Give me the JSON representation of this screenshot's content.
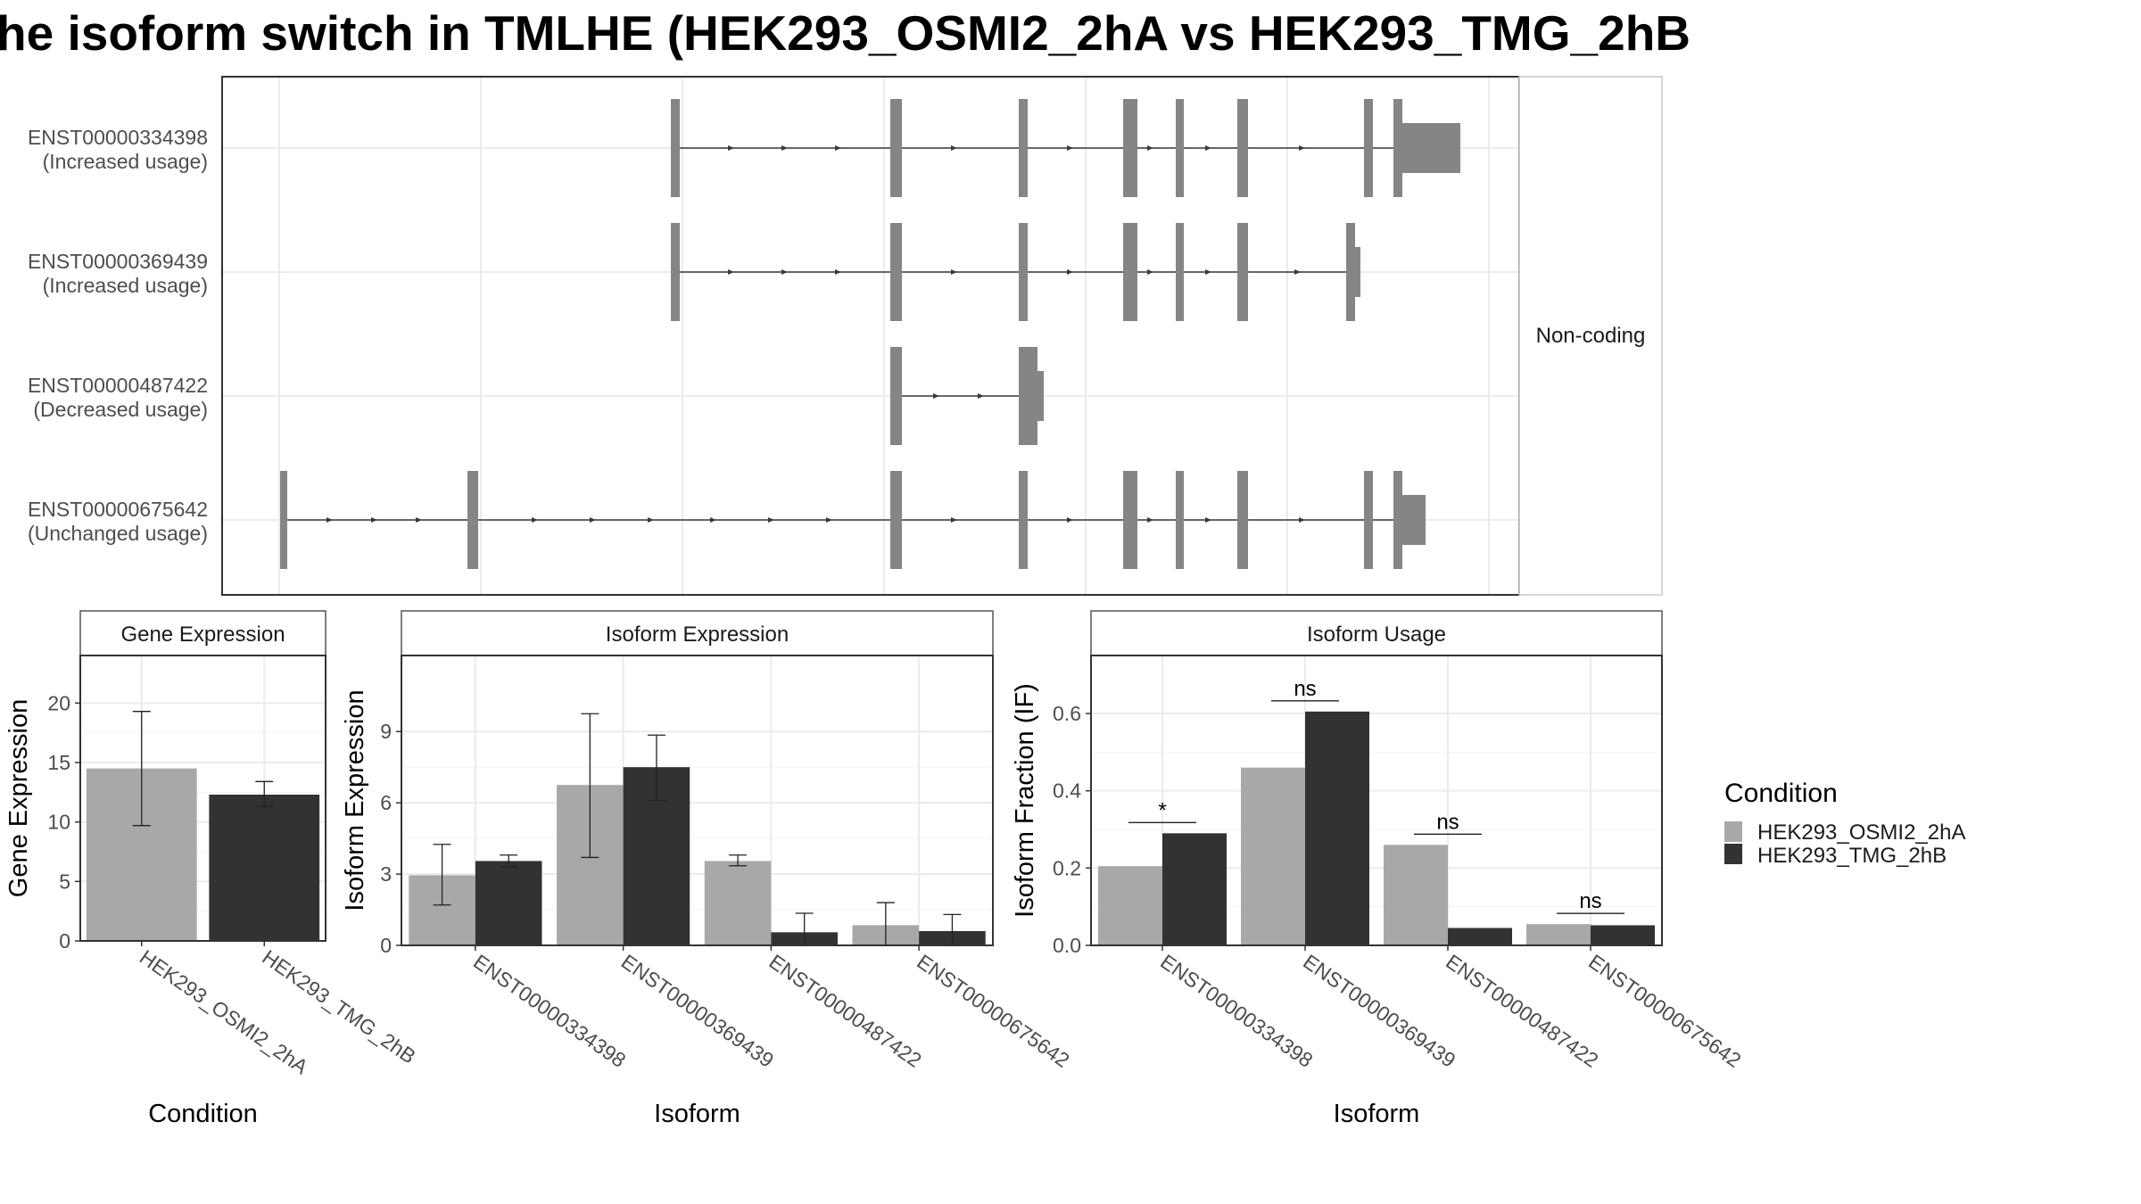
{
  "title": "he isoform switch in TMLHE (HEK293_OSMI2_2hA vs HEK293_TMG_2hB",
  "colors": {
    "cond_a": "#A8A8A8",
    "cond_b": "#323232",
    "exon": "#858585",
    "intron": "#3a3a3a",
    "grid": "#EBEBEB",
    "frame": "#333333",
    "strip_border": "#555555"
  },
  "chart_data": [
    {
      "type": "gene-structure",
      "facet_label": "Non-coding",
      "transcripts": [
        {
          "id": "ENST00000334398",
          "usage": "(Increased usage)"
        },
        {
          "id": "ENST00000369439",
          "usage": "(Increased usage)"
        },
        {
          "id": "ENST00000487422",
          "usage": "(Decreased usage)"
        },
        {
          "id": "ENST00000675642",
          "usage": "(Unchanged usage)"
        }
      ]
    },
    {
      "type": "bar",
      "title": "Gene Expression",
      "xlabel": "Condition",
      "ylabel": "Gene Expression",
      "ylim": [
        0,
        24
      ],
      "yticks": [
        0,
        5,
        10,
        15,
        20
      ],
      "categories": [
        "HEK293_OSMI2_2hA",
        "HEK293_TMG_2hB"
      ],
      "values": [
        14.5,
        12.3
      ],
      "errors": [
        [
          9.7,
          19.3
        ],
        [
          11.3,
          13.4
        ]
      ]
    },
    {
      "type": "bar",
      "title": "Isoform Expression",
      "xlabel": "Isoform",
      "ylabel": "Isoform Expression",
      "ylim": [
        0,
        12.2
      ],
      "yticks": [
        0,
        3,
        6,
        9
      ],
      "categories": [
        "ENST00000334398",
        "ENST00000369439",
        "ENST00000487422",
        "ENST00000675642"
      ],
      "series": [
        {
          "name": "HEK293_OSMI2_2hA",
          "values": [
            2.95,
            6.75,
            3.55,
            0.85
          ],
          "errors": [
            [
              1.7,
              4.25
            ],
            [
              3.7,
              9.75
            ],
            [
              3.35,
              3.8
            ],
            [
              0.0,
              1.8
            ]
          ]
        },
        {
          "name": "HEK293_TMG_2hB",
          "values": [
            3.55,
            7.5,
            0.55,
            0.6
          ],
          "errors": [
            [
              3.3,
              3.8
            ],
            [
              6.1,
              8.85
            ],
            [
              0.0,
              1.35
            ],
            [
              0.0,
              1.3
            ]
          ]
        }
      ]
    },
    {
      "type": "bar",
      "title": "Isoform Usage",
      "xlabel": "Isoform",
      "ylabel": "Isoform Fraction (IF)",
      "ylim": [
        0,
        0.75
      ],
      "yticks": [
        "0.0",
        "0.2",
        "0.4",
        "0.6"
      ],
      "categories": [
        "ENST00000334398",
        "ENST00000369439",
        "ENST00000487422",
        "ENST00000675642"
      ],
      "series": [
        {
          "name": "HEK293_OSMI2_2hA",
          "values": [
            0.205,
            0.46,
            0.26,
            0.055
          ]
        },
        {
          "name": "HEK293_TMG_2hB",
          "values": [
            0.29,
            0.605,
            0.045,
            0.052
          ]
        }
      ],
      "significance": [
        "*",
        "ns",
        "ns",
        "ns"
      ]
    }
  ],
  "legend": {
    "title": "Condition",
    "items": [
      "HEK293_OSMI2_2hA",
      "HEK293_TMG_2hB"
    ]
  }
}
